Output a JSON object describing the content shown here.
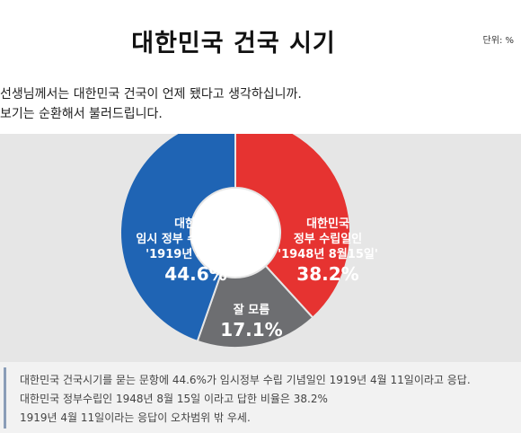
{
  "header": {
    "title": "대한민국 건국 시기",
    "unit": "단위: %"
  },
  "question": {
    "lines": [
      "선생님께서는 대한민국 건국이 언제 됐다고 생각하십니까.",
      "보기는 순환해서 불러드립니다."
    ]
  },
  "chart_data": {
    "type": "pie",
    "title": "대한민국 건국 시기",
    "unit": "%",
    "donut": true,
    "slices": [
      {
        "label_lines": [
          "대한민국",
          "정부 수립일인",
          "'1948년 8월15일'"
        ],
        "value": 38.2,
        "value_label": "38.2%",
        "color": "#e63331"
      },
      {
        "label_lines": [
          "잘 모름"
        ],
        "value": 17.1,
        "value_label": "17.1%",
        "color": "#6d6e71"
      },
      {
        "label_lines": [
          "대한민국",
          "임시 정부 수립 기념일인",
          "'1919년 4월11일'"
        ],
        "value": 44.6,
        "value_label": "44.6%",
        "color": "#1f64b4"
      }
    ]
  },
  "notes": {
    "lines": [
      "대한민국 건국시기를 묻는 문항에 44.6%가 임시정부 수립 기념일인 1919년 4월 11일이라고 응답.",
      "대한민국 정부수립인 1948년 8월 15일 이라고 답한 비율은 38.2%",
      "1919년 4월 11일이라는 응답이 오차범위 밖 우세."
    ]
  }
}
